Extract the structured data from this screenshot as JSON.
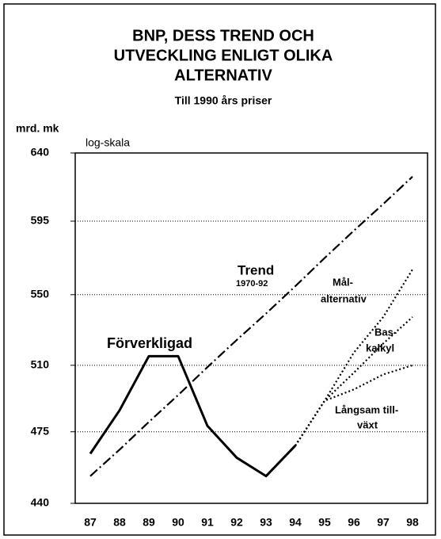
{
  "chart_data": {
    "type": "line",
    "title": [
      "BNP, DESS TREND  OCH",
      "UTVECKLING ENLIGT  OLIKA",
      "ALTERNATIV"
    ],
    "subtitle": "Till 1990 års priser",
    "y_label": "mrd. mk",
    "scale_note": "log-skala",
    "log_scale": true,
    "categories": [
      "87",
      "88",
      "89",
      "90",
      "91",
      "92",
      "93",
      "94",
      "95",
      "96",
      "97",
      "98"
    ],
    "ylim": [
      440,
      640
    ],
    "yticks": [
      440,
      475,
      510,
      550,
      595,
      640
    ],
    "grid": true,
    "series": [
      {
        "name": "Förverkligad",
        "color": "#000000",
        "dash": "solid",
        "values": [
          464,
          486,
          515,
          515,
          478,
          462,
          453,
          468,
          null,
          null,
          null,
          null
        ]
      },
      {
        "name": "Trend",
        "color": "#000000",
        "dash": "dashdot",
        "values": [
          453,
          466,
          480,
          494,
          509,
          524,
          539,
          555,
          572,
          589,
          606,
          624
        ]
      },
      {
        "name": "Mål-alternativ",
        "color": "#000000",
        "dash": "dotted",
        "values": [
          null,
          null,
          null,
          null,
          null,
          null,
          null,
          468,
          491,
          517,
          537,
          565
        ]
      },
      {
        "name": "Baskalkyl",
        "color": "#000000",
        "dash": "dotted",
        "values": [
          null,
          null,
          null,
          null,
          null,
          null,
          null,
          468,
          491,
          506,
          522,
          537
        ]
      },
      {
        "name": "Långsam tillväxt",
        "color": "#000000",
        "dash": "dotted",
        "values": [
          null,
          null,
          null,
          null,
          null,
          null,
          null,
          468,
          491,
          497,
          505,
          510
        ]
      }
    ],
    "annotations": [
      "Förverkligad",
      "Trend",
      "1970-92",
      "Mål-",
      "alternativ",
      "Bas-",
      "kalkyl",
      "Långsam till-",
      "växt"
    ]
  }
}
